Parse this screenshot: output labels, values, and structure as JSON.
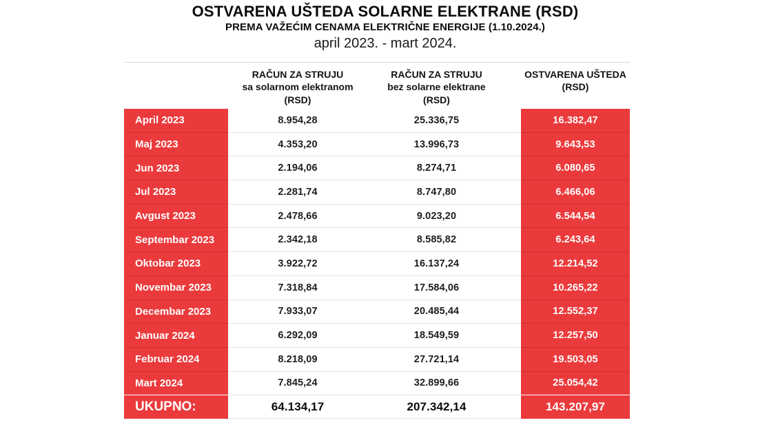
{
  "title": {
    "line1": "OSTVARENA UŠTEDA SOLARNE ELEKTRANE (RSD)",
    "line2": "PREMA VAŽEĆIM CENAMA ELEKTRIČNE ENERGIJE (1.10.2024.)",
    "line3": "april 2023. - mart 2024."
  },
  "header": {
    "col_with_solar": {
      "l1": "RAČUN ZA STRUJU",
      "l2": "sa solarnom elektranom",
      "l3": "(RSD)"
    },
    "col_without_solar": {
      "l1": "RAČUN ZA STRUJU",
      "l2": "bez solarne elektrane",
      "l3": "(RSD)"
    },
    "col_savings": {
      "l1": "OSTVARENA UŠTEDA",
      "l2": "(RSD)"
    }
  },
  "colors": {
    "accent_red": "#eb3a3c",
    "row_separator_light": "#e3e3e3",
    "row_separator_red": "#cf3335"
  },
  "chart_data": {
    "type": "table",
    "title": "OSTVARENA UŠTEDA SOLARNE ELEKTRANE (RSD)",
    "subtitle": "PREMA VAŽEĆIM CENAMA ELEKTRIČNE ENERGIJE (1.10.2024.)",
    "period": "april 2023. - mart 2024.",
    "columns": [
      "",
      "RAČUN ZA STRUJU sa solarnom elektranom (RSD)",
      "RAČUN ZA STRUJU bez solarne elektrane (RSD)",
      "OSTVARENA UŠTEDA (RSD)"
    ],
    "rows": [
      {
        "month": "April 2023",
        "with_solar": "8.954,28",
        "without_solar": "25.336,75",
        "savings": "16.382,47"
      },
      {
        "month": "Maj 2023",
        "with_solar": "4.353,20",
        "without_solar": "13.996,73",
        "savings": "9.643,53"
      },
      {
        "month": "Jun 2023",
        "with_solar": "2.194,06",
        "without_solar": "8.274,71",
        "savings": "6.080,65"
      },
      {
        "month": "Jul 2023",
        "with_solar": "2.281,74",
        "without_solar": "8.747,80",
        "savings": "6.466,06"
      },
      {
        "month": "Avgust 2023",
        "with_solar": "2.478,66",
        "without_solar": "9.023,20",
        "savings": "6.544,54"
      },
      {
        "month": "Septembar 2023",
        "with_solar": "2.342,18",
        "without_solar": "8.585,82",
        "savings": "6.243,64"
      },
      {
        "month": "Oktobar 2023",
        "with_solar": "3.922,72",
        "without_solar": "16.137,24",
        "savings": "12.214,52"
      },
      {
        "month": "Novembar 2023",
        "with_solar": "7.318,84",
        "without_solar": "17.584,06",
        "savings": "10.265,22"
      },
      {
        "month": "Decembar 2023",
        "with_solar": "7.933,07",
        "without_solar": "20.485,44",
        "savings": "12.552,37"
      },
      {
        "month": "Januar 2024",
        "with_solar": "6.292,09",
        "without_solar": "18.549,59",
        "savings": "12.257,50"
      },
      {
        "month": "Februar 2024",
        "with_solar": "8.218,09",
        "without_solar": "27.721,14",
        "savings": "19.503,05"
      },
      {
        "month": "Mart 2024",
        "with_solar": "7.845,24",
        "without_solar": "32.899,66",
        "savings": "25.054,42"
      }
    ],
    "footer": {
      "label": "UKUPNO:",
      "with_solar": "64.134,17",
      "without_solar": "207.342,14",
      "savings": "143.207,97"
    }
  }
}
